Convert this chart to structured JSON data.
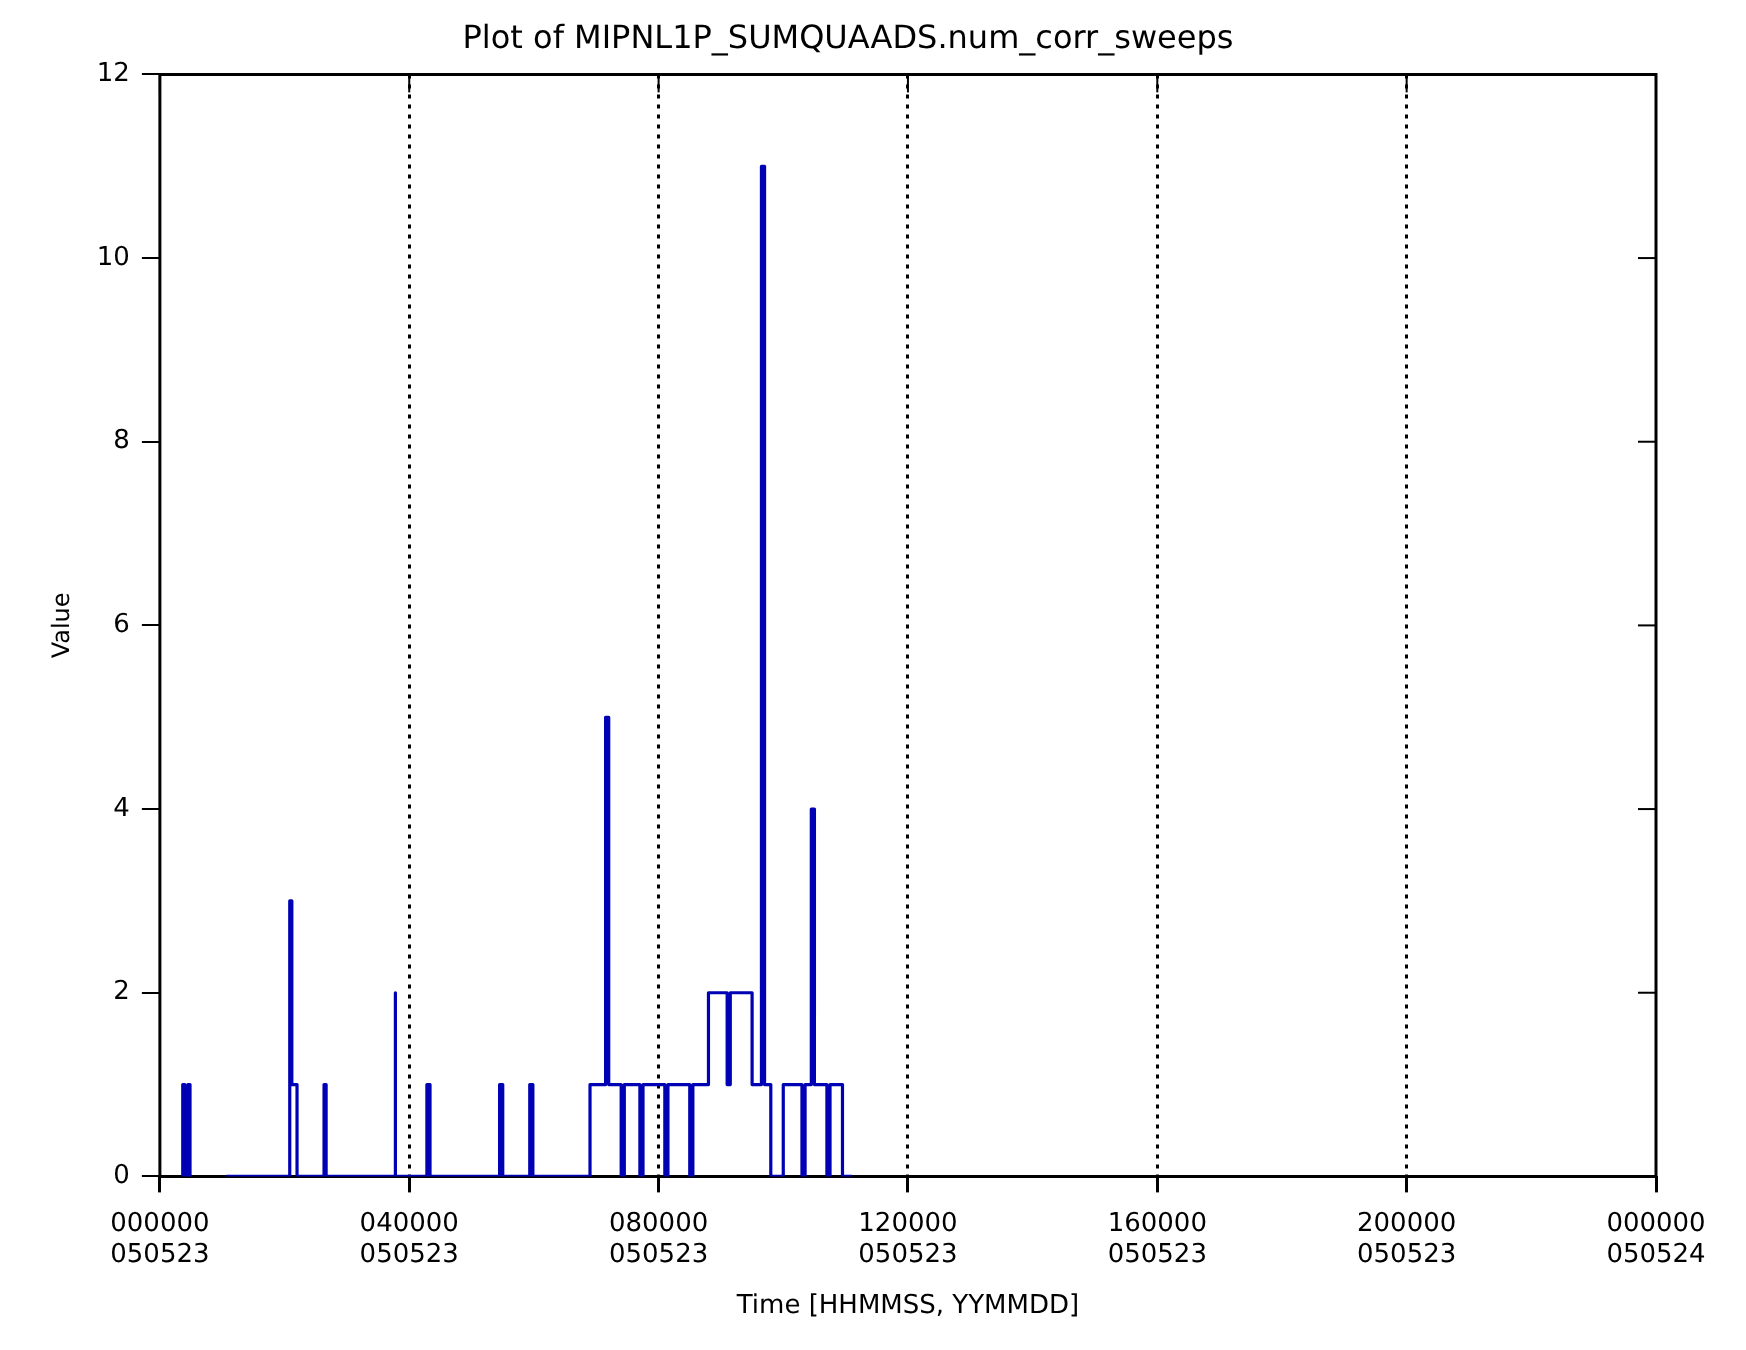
{
  "chart_data": {
    "type": "line",
    "title": "Plot of MIPNL1P_SUMQUAADS.num_corr_sweeps",
    "xlabel": "Time [HHMMSS, YYMMDD]",
    "ylabel": "Value",
    "xlim": [
      "--05-23T00:00",
      "--05-24T00:00"
    ],
    "xticks": [
      {
        "value": "--05-23T00:00",
        "label": "000000\n050523"
      },
      {
        "value": "--05-23T04:00",
        "label": "040000\n050523"
      },
      {
        "value": "--05-23T08:00",
        "label": "080000\n050523"
      },
      {
        "value": "--05-23T12:00",
        "label": "120000\n050523"
      },
      {
        "value": "--05-23T16:00",
        "label": "160000\n050523"
      },
      {
        "value": "--05-23T20:00",
        "label": "200000\n050523"
      },
      {
        "value": "--05-24T00:00",
        "label": "000000\n050524"
      }
    ],
    "ylim": [
      0,
      12
    ],
    "yticks": [
      0,
      2,
      4,
      6,
      8,
      10,
      12
    ],
    "grid": "x",
    "legend": false,
    "marker": "none",
    "line_style": "solid",
    "series": [
      {
        "color": "#0000b4",
        "x": [
          "--05-23T00:22",
          "--05-23T00:22",
          "--05-23T00:24",
          "--05-23T00:24",
          "--05-23T00:27",
          "--05-23T00:27",
          "--05-23T00:29",
          "--05-23T00:29",
          "--05-23T00:48",
          "--05-23T01:04",
          "--05-23T02:05",
          "--05-23T02:05",
          "--05-23T02:07",
          "--05-23T02:07",
          "--05-23T02:12",
          "--05-23T02:12",
          "--05-23T02:38",
          "--05-23T02:38",
          "--05-23T02:40",
          "--05-23T02:40",
          "--05-23T03:46",
          "--05-23T03:46",
          "--05-23T03:47",
          "--05-23T03:47",
          "--05-23T04:17",
          "--05-23T04:17",
          "--05-23T04:20",
          "--05-23T04:20",
          "--05-23T05:27",
          "--05-23T05:27",
          "--05-23T05:30",
          "--05-23T05:30",
          "--05-23T05:56",
          "--05-23T05:56",
          "--05-23T05:59",
          "--05-23T05:59",
          "--05-23T06:54",
          "--05-23T06:54",
          "--05-23T07:09",
          "--05-23T07:09",
          "--05-23T07:12",
          "--05-23T07:12",
          "--05-23T07:24",
          "--05-23T07:24",
          "--05-23T07:27",
          "--05-23T07:27",
          "--05-23T07:42",
          "--05-23T07:42",
          "--05-23T07:45",
          "--05-23T07:45",
          "--05-23T08:06",
          "--05-23T08:06",
          "--05-23T08:09",
          "--05-23T08:09",
          "--05-23T08:30",
          "--05-23T08:30",
          "--05-23T08:33",
          "--05-23T08:33",
          "--05-23T08:48",
          "--05-23T08:48",
          "--05-23T09:06",
          "--05-23T09:06",
          "--05-23T09:09",
          "--05-23T09:09",
          "--05-23T09:30",
          "--05-23T09:30",
          "--05-23T09:39",
          "--05-23T09:39",
          "--05-23T09:42",
          "--05-23T09:42",
          "--05-23T09:48",
          "--05-23T09:48",
          "--05-23T10:00",
          "--05-23T10:00",
          "--05-23T10:18",
          "--05-23T10:18",
          "--05-23T10:21",
          "--05-23T10:21",
          "--05-23T10:27",
          "--05-23T10:27",
          "--05-23T10:30",
          "--05-23T10:30",
          "--05-23T10:42",
          "--05-23T10:42",
          "--05-23T10:45",
          "--05-23T10:45",
          "--05-23T10:57",
          "--05-23T10:57",
          "--05-23T11:06"
        ],
        "values": [
          0,
          1,
          1,
          0,
          0,
          1,
          1,
          0,
          null,
          0,
          0,
          3,
          3,
          1,
          1,
          0,
          0,
          1,
          1,
          0,
          0,
          2,
          2,
          0,
          0,
          1,
          1,
          0,
          0,
          1,
          1,
          0,
          0,
          1,
          1,
          0,
          0,
          1,
          1,
          5,
          5,
          1,
          1,
          0,
          0,
          1,
          1,
          0,
          0,
          1,
          1,
          0,
          0,
          1,
          1,
          0,
          0,
          1,
          1,
          2,
          2,
          1,
          1,
          2,
          2,
          1,
          1,
          11,
          11,
          1,
          1,
          0,
          0,
          1,
          1,
          0,
          0,
          1,
          1,
          4,
          4,
          1,
          1,
          0,
          0,
          1,
          1,
          0,
          0
        ]
      }
    ]
  }
}
